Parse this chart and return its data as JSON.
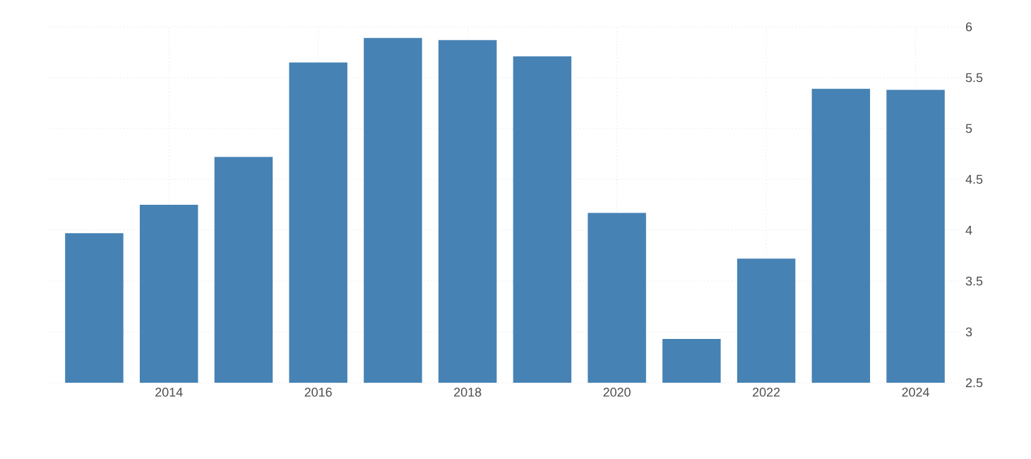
{
  "chart_data": {
    "type": "bar",
    "x": [
      2013,
      2014,
      2015,
      2016,
      2017,
      2018,
      2019,
      2020,
      2021,
      2022,
      2023,
      2024
    ],
    "values": [
      3.97,
      4.25,
      4.72,
      5.65,
      5.89,
      5.87,
      5.71,
      4.17,
      2.93,
      3.72,
      5.39,
      5.38
    ],
    "color": "#4682b4",
    "xlim": [
      2012.4,
      2024.6
    ],
    "xticks": [
      2014,
      2016,
      2018,
      2020,
      2022,
      2024
    ],
    "ylim": [
      2.5,
      6
    ],
    "yticks": [
      2.5,
      3,
      3.5,
      4,
      4.5,
      5,
      5.5,
      6
    ],
    "grid": true
  }
}
